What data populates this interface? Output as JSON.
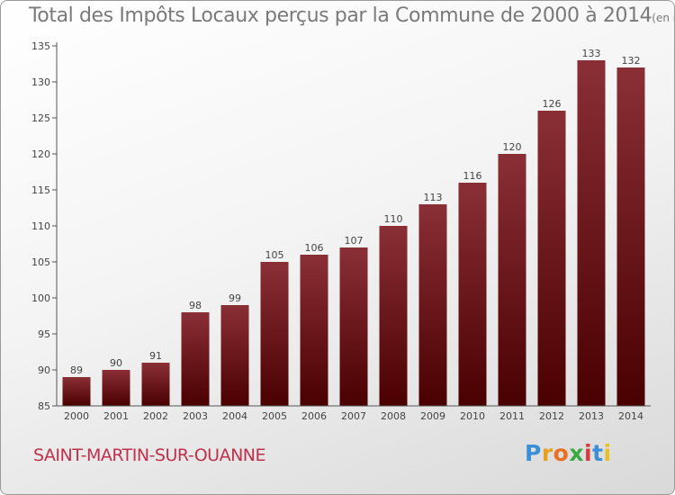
{
  "chart_data": {
    "type": "bar",
    "title": "Total des Impôts Locaux perçus par la Commune de 2000 à 2014",
    "unit_note": "(en milliers d'€)",
    "xlabel": "",
    "ylabel": "",
    "categories": [
      "2000",
      "2001",
      "2002",
      "2003",
      "2004",
      "2005",
      "2006",
      "2007",
      "2008",
      "2009",
      "2010",
      "2011",
      "2012",
      "2013",
      "2014"
    ],
    "values": [
      89,
      90,
      91,
      98,
      99,
      105,
      106,
      107,
      110,
      113,
      116,
      120,
      126,
      133,
      132
    ],
    "ylim": [
      85,
      135
    ],
    "yticks": [
      85,
      90,
      95,
      100,
      105,
      110,
      115,
      120,
      125,
      130,
      135
    ],
    "grid": false,
    "colors": {
      "bar_top": "#8a2f36",
      "bar_bottom": "#4a0000",
      "axis": "#555555",
      "text": "#444444"
    }
  },
  "commune": "SAINT-MARTIN-SUR-OUANNE",
  "logo": {
    "letters": [
      "P",
      "r",
      "o",
      "x",
      "i",
      "t",
      "i"
    ],
    "colors": [
      "#3a8fd8",
      "#e8a020",
      "#e87020",
      "#3aaa40",
      "#d83a3a",
      "#3a8fd8",
      "#e8c020"
    ]
  }
}
